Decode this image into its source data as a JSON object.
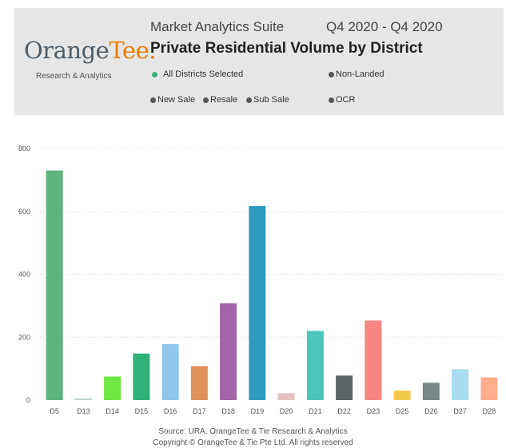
{
  "header": {
    "logo_text_main": "Orange",
    "logo_text_accent": "Tee.",
    "logo_sub": "Research & Analytics",
    "suite": "Market Analytics Suite",
    "period": "Q4 2020 - Q4 2020",
    "title": "Private Residential Volume by District",
    "filters": [
      {
        "label": "All Districts Selected",
        "color": "#3fae7a"
      },
      {
        "label": "Non-Landed",
        "color": "#555555"
      },
      {
        "label": "New Sale",
        "color": "#555555"
      },
      {
        "label": "Resale",
        "color": "#555555"
      },
      {
        "label": "Sub Sale",
        "color": "#555555"
      },
      {
        "label": "OCR",
        "color": "#555555"
      }
    ]
  },
  "chart_data": {
    "type": "bar",
    "categories": [
      "D5",
      "D13",
      "D14",
      "D15",
      "D16",
      "D17",
      "D18",
      "D19",
      "D20",
      "D21",
      "D22",
      "D23",
      "D25",
      "D26",
      "D27",
      "D28"
    ],
    "values": [
      730,
      5,
      75,
      148,
      178,
      108,
      308,
      617,
      22,
      220,
      78,
      253,
      30,
      55,
      98,
      72
    ],
    "colors": [
      "#5cb47f",
      "#b9d6d0",
      "#6ee843",
      "#2fb17a",
      "#8ec6ec",
      "#df925a",
      "#a066a6",
      "#2f9ac0",
      "#e4c2c2",
      "#4bc6b8",
      "#5b6465",
      "#f78683",
      "#f2c94c",
      "#7a8788",
      "#a9dcef",
      "#ffad8a"
    ],
    "yticks": [
      0,
      200,
      400,
      600,
      800
    ],
    "ylim": [
      0,
      800
    ],
    "grid": true
  },
  "footer": {
    "source": "Source: URA, OrangeTee & Tie Research & Analytics",
    "copyright": "Copyright © OrangeTee & Tie Pte Ltd. All rights reserved"
  }
}
